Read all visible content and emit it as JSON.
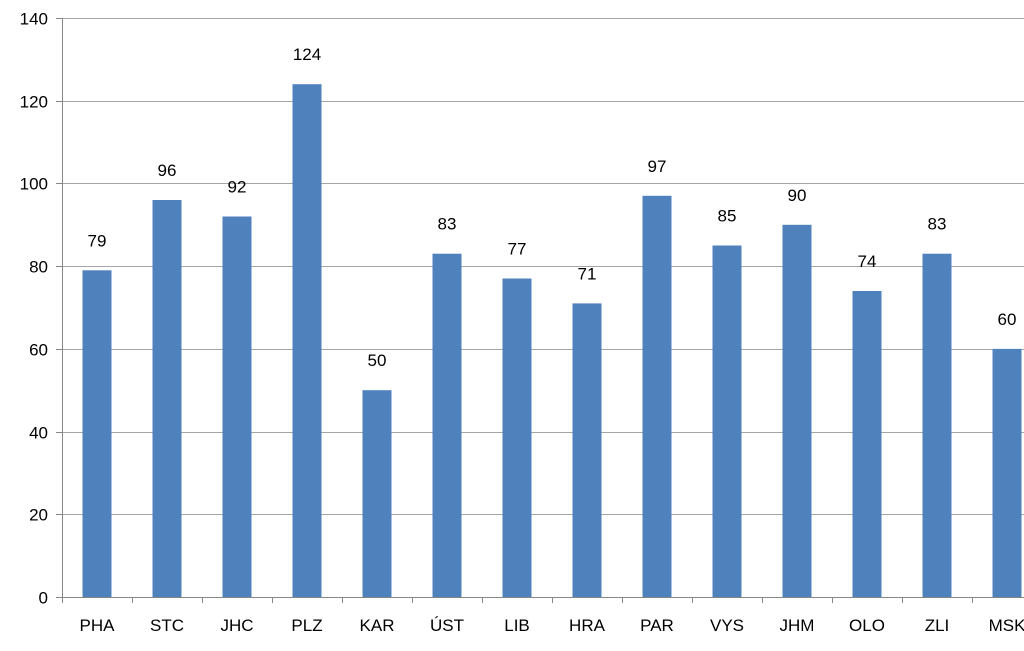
{
  "chart_data": {
    "type": "bar",
    "categories": [
      "PHA",
      "STC",
      "JHC",
      "PLZ",
      "KAR",
      "ÚST",
      "LIB",
      "HRA",
      "PAR",
      "VYS",
      "JHM",
      "OLO",
      "ZLI",
      "MSK"
    ],
    "values": [
      79,
      96,
      92,
      124,
      50,
      83,
      77,
      71,
      97,
      85,
      90,
      74,
      83,
      60
    ],
    "data_labels": [
      "79",
      "96",
      "92",
      "124",
      "50",
      "83",
      "77",
      "71",
      "97",
      "85",
      "90",
      "74",
      "83",
      "60"
    ],
    "ylim": [
      0,
      140
    ],
    "yticks": [
      0,
      20,
      40,
      60,
      80,
      100,
      120,
      140
    ],
    "ytick_labels": [
      "0",
      "20",
      "40",
      "60",
      "80",
      "100",
      "120",
      "140"
    ],
    "grid": true,
    "legend": "none",
    "bar_color": "#4F81BD",
    "grid_color": "#A6A6A6",
    "axis_color": "#868686"
  }
}
